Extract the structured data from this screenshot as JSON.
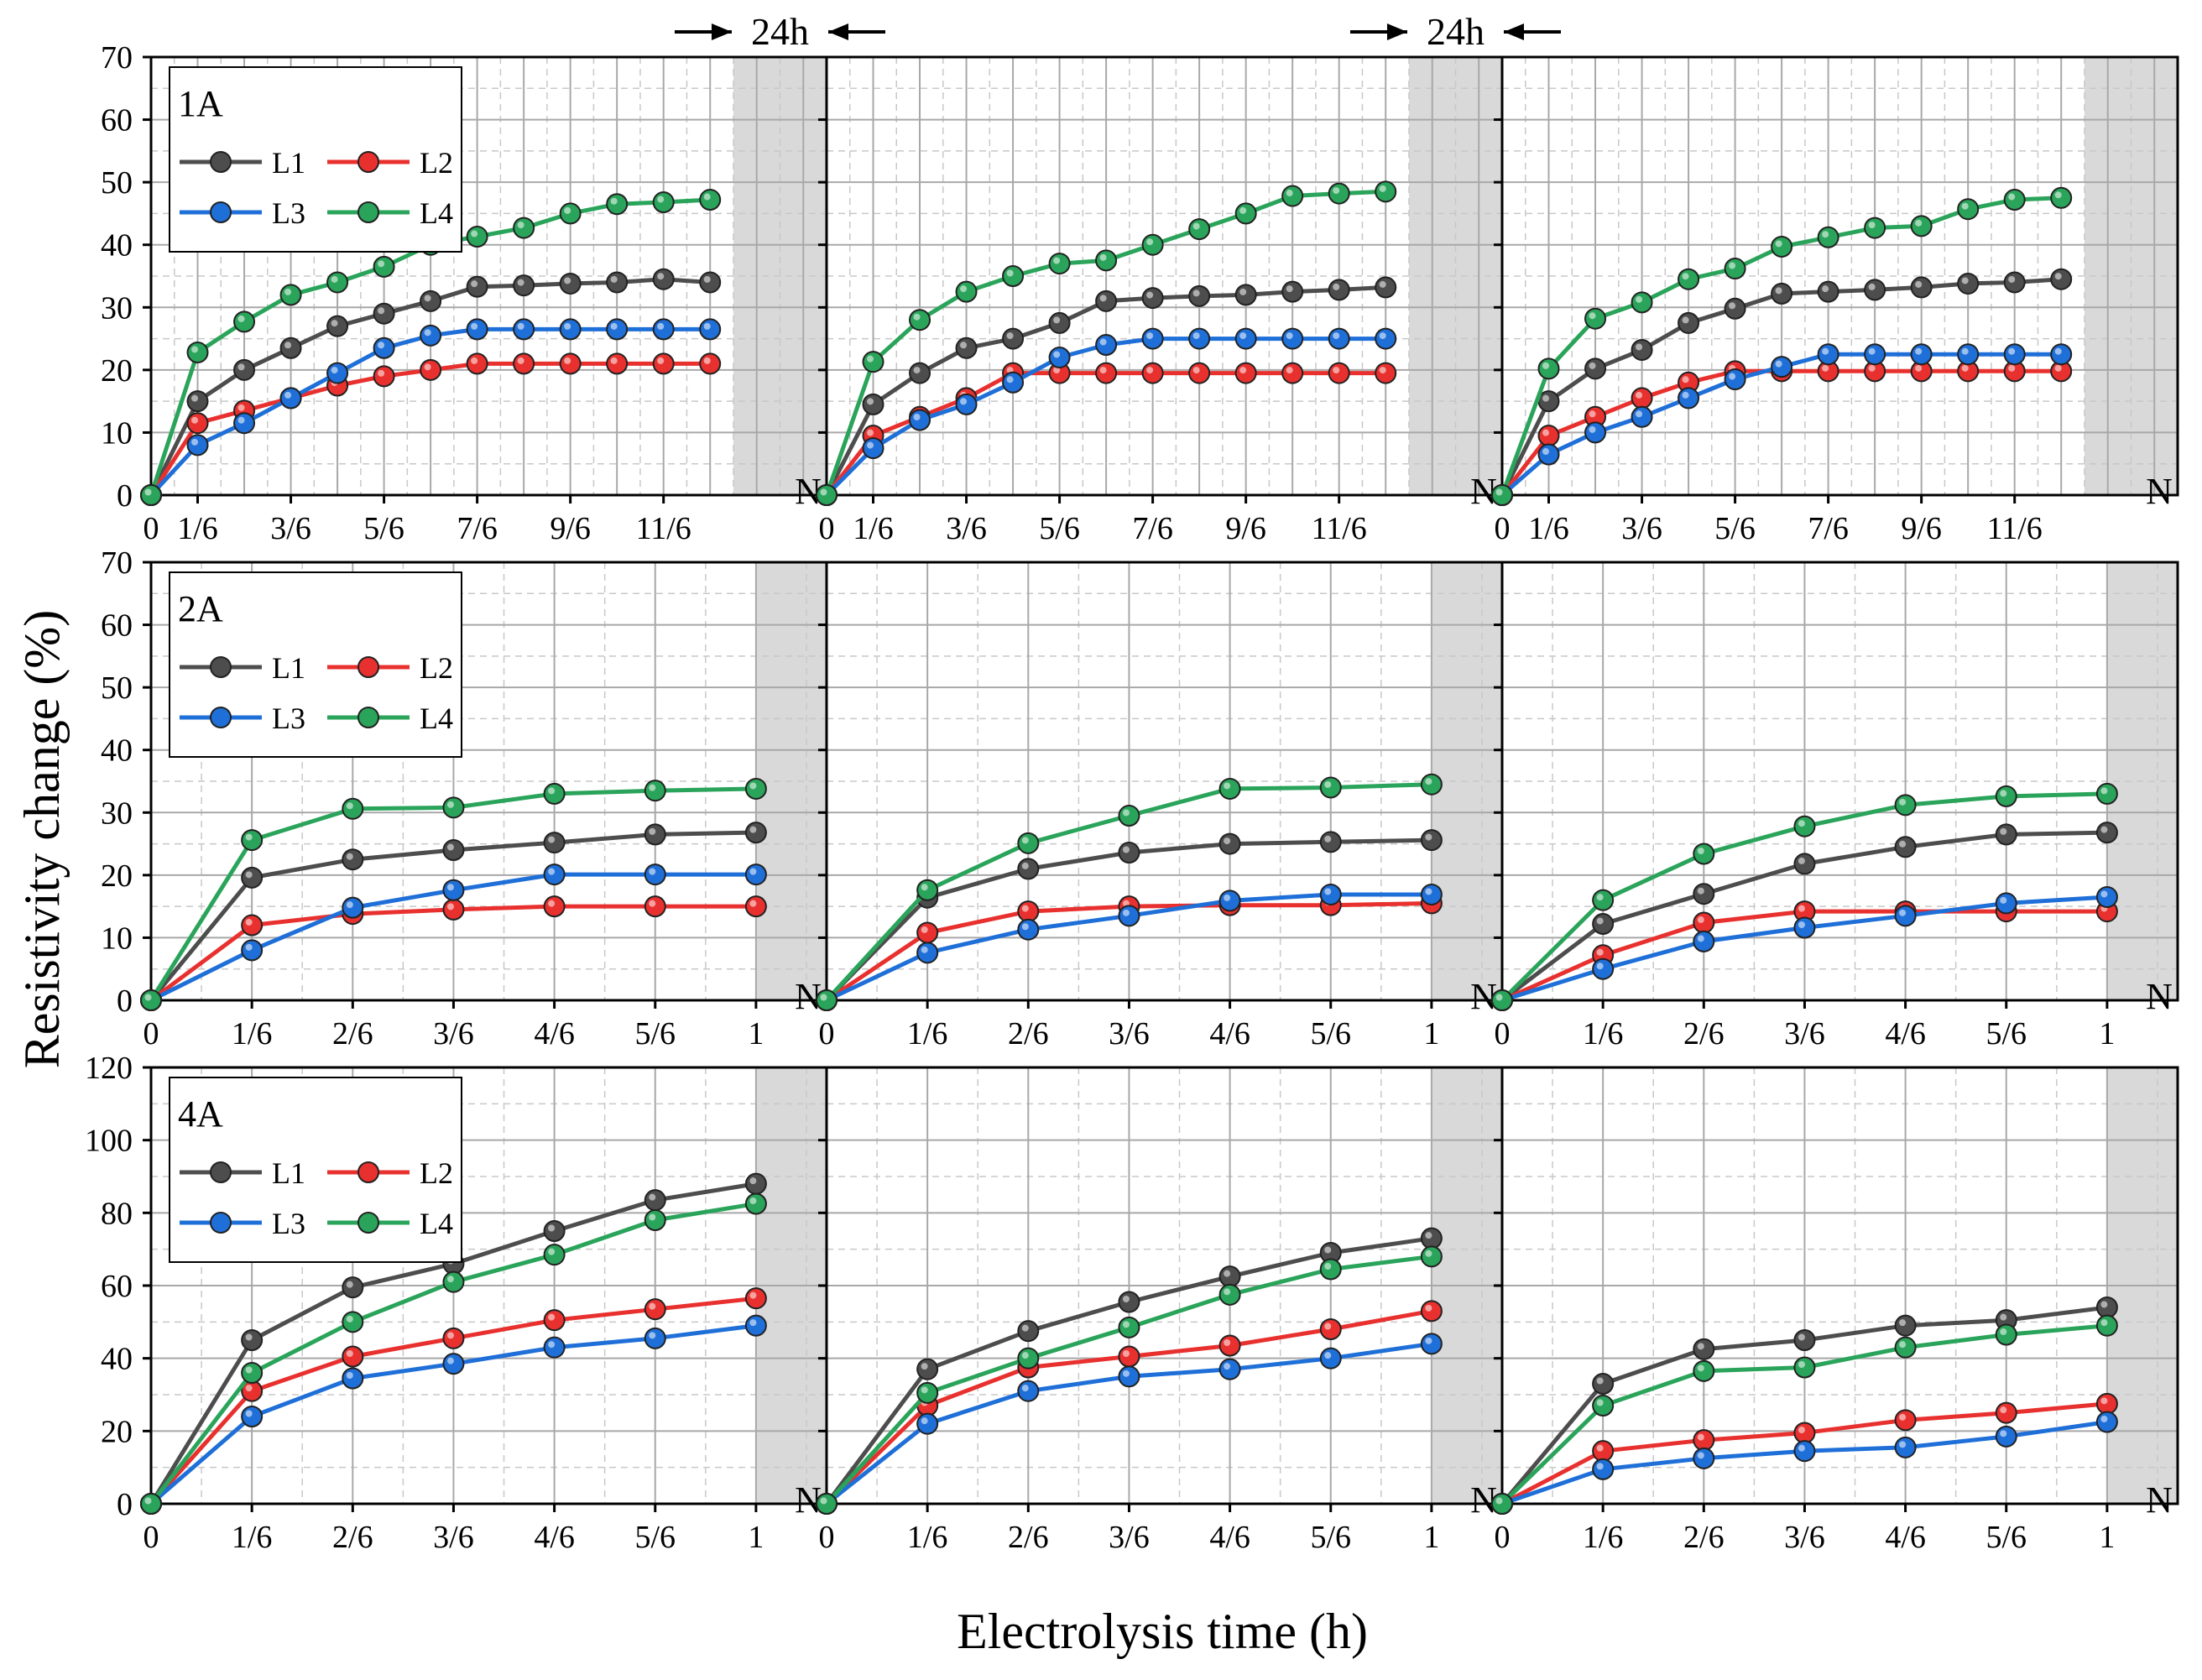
{
  "chart_data": {
    "type": "line",
    "xlabel": "Electrolysis time (h)",
    "ylabel": "Resistivity change (%)",
    "break_marker": "N",
    "annotation": "24h",
    "legend_entries": [
      "L1",
      "L2",
      "L3",
      "L4"
    ],
    "series_colors": {
      "L1": "#4d4d4d",
      "L2": "#e8312f",
      "L3": "#1f6fd8",
      "L4": "#2aa45a"
    },
    "rows": [
      {
        "label": "1A",
        "ylim": [
          0,
          70
        ],
        "yticks": [
          "0",
          "10",
          "20",
          "30",
          "40",
          "50",
          "60",
          "70"
        ],
        "xlim": [
          0,
          14.5
        ],
        "shade_from": 12.5,
        "xtick_values": [
          0,
          1,
          3,
          5,
          7,
          9,
          11
        ],
        "xtick_labels": [
          "0",
          "1/6",
          "3/6",
          "5/6",
          "7/6",
          "9/6",
          "11/6"
        ],
        "x": [
          0,
          1,
          2,
          3,
          4,
          5,
          6,
          7,
          8,
          9,
          10,
          11,
          12
        ],
        "panels": [
          {
            "series": [
              {
                "name": "L1",
                "values": [
                  0,
                  15,
                  20,
                  23.5,
                  27,
                  29,
                  31,
                  33.3,
                  33.5,
                  33.8,
                  34,
                  34.5,
                  34
                ]
              },
              {
                "name": "L2",
                "values": [
                  0,
                  11.5,
                  13.5,
                  15.5,
                  17.5,
                  19,
                  20,
                  21,
                  21,
                  21,
                  21,
                  21,
                  21
                ]
              },
              {
                "name": "L3",
                "values": [
                  0,
                  8,
                  11.5,
                  15.5,
                  19.5,
                  23.5,
                  25.5,
                  26.5,
                  26.5,
                  26.5,
                  26.5,
                  26.5,
                  26.5
                ]
              },
              {
                "name": "L4",
                "values": [
                  0,
                  22.8,
                  27.7,
                  32,
                  34,
                  36.5,
                  40,
                  41.3,
                  42.7,
                  45,
                  46.5,
                  46.8,
                  47.2
                ]
              }
            ]
          },
          {
            "series": [
              {
                "name": "L1",
                "values": [
                  0,
                  14.5,
                  19.5,
                  23.5,
                  25,
                  27.5,
                  31,
                  31.5,
                  31.8,
                  32,
                  32.5,
                  32.8,
                  33.2
                ]
              },
              {
                "name": "L2",
                "values": [
                  0,
                  9.5,
                  12.5,
                  15.5,
                  19.5,
                  19.5,
                  19.5,
                  19.5,
                  19.5,
                  19.5,
                  19.5,
                  19.5,
                  19.5
                ]
              },
              {
                "name": "L3",
                "values": [
                  0,
                  7.5,
                  12,
                  14.5,
                  18,
                  22,
                  24,
                  25,
                  25,
                  25,
                  25,
                  25,
                  25
                ]
              },
              {
                "name": "L4",
                "values": [
                  0,
                  21.3,
                  28,
                  32.5,
                  35,
                  37,
                  37.5,
                  40,
                  42.5,
                  45,
                  47.8,
                  48.2,
                  48.5
                ]
              }
            ]
          },
          {
            "series": [
              {
                "name": "L1",
                "values": [
                  0,
                  15,
                  20.2,
                  23.2,
                  27.5,
                  29.8,
                  32.2,
                  32.5,
                  32.8,
                  33.2,
                  33.8,
                  34,
                  34.5
                ]
              },
              {
                "name": "L2",
                "values": [
                  0,
                  9.5,
                  12.5,
                  15.5,
                  18,
                  19.8,
                  19.8,
                  19.8,
                  19.8,
                  19.8,
                  19.8,
                  19.8,
                  19.8
                ]
              },
              {
                "name": "L3",
                "values": [
                  0,
                  6.5,
                  10,
                  12.5,
                  15.5,
                  18.5,
                  20.5,
                  22.5,
                  22.5,
                  22.5,
                  22.5,
                  22.5,
                  22.5
                ]
              },
              {
                "name": "L4",
                "values": [
                  0,
                  20.2,
                  28.2,
                  30.8,
                  34.5,
                  36.2,
                  39.7,
                  41.2,
                  42.7,
                  43,
                  45.7,
                  47.2,
                  47.5
                ]
              }
            ]
          }
        ]
      },
      {
        "label": "2A",
        "ylim": [
          0,
          70
        ],
        "yticks": [
          "0",
          "10",
          "20",
          "30",
          "40",
          "50",
          "60",
          "70"
        ],
        "xlim": [
          0,
          6.7
        ],
        "shade_from": 6,
        "xtick_values": [
          0,
          1,
          2,
          3,
          4,
          5,
          6
        ],
        "xtick_labels": [
          "0",
          "1/6",
          "2/6",
          "3/6",
          "4/6",
          "5/6",
          "1"
        ],
        "x": [
          0,
          1,
          2,
          3,
          4,
          5,
          6
        ],
        "panels": [
          {
            "series": [
              {
                "name": "L1",
                "values": [
                  0,
                  19.6,
                  22.5,
                  24,
                  25.2,
                  26.5,
                  26.8
                ]
              },
              {
                "name": "L2",
                "values": [
                  0,
                  12,
                  13.8,
                  14.5,
                  15,
                  15,
                  15
                ]
              },
              {
                "name": "L3",
                "values": [
                  0,
                  8,
                  14.8,
                  17.6,
                  20.1,
                  20.1,
                  20.1
                ]
              },
              {
                "name": "L4",
                "values": [
                  0,
                  25.6,
                  30.6,
                  30.8,
                  33,
                  33.5,
                  33.8
                ]
              }
            ]
          },
          {
            "series": [
              {
                "name": "L1",
                "values": [
                  0,
                  16.4,
                  21,
                  23.6,
                  25,
                  25.3,
                  25.6
                ]
              },
              {
                "name": "L2",
                "values": [
                  0,
                  10.8,
                  14.2,
                  15,
                  15.2,
                  15.2,
                  15.5
                ]
              },
              {
                "name": "L3",
                "values": [
                  0,
                  7.6,
                  11.3,
                  13.5,
                  15.9,
                  16.9,
                  16.9
                ]
              },
              {
                "name": "L4",
                "values": [
                  0,
                  17.6,
                  25.1,
                  29.5,
                  33.8,
                  34,
                  34.5
                ]
              }
            ]
          },
          {
            "series": [
              {
                "name": "L1",
                "values": [
                  0,
                  12.2,
                  17,
                  21.8,
                  24.5,
                  26.5,
                  26.8
                ]
              },
              {
                "name": "L2",
                "values": [
                  0,
                  7.2,
                  12.4,
                  14.2,
                  14.2,
                  14.2,
                  14.2
                ]
              },
              {
                "name": "L3",
                "values": [
                  0,
                  5,
                  9.4,
                  11.6,
                  13.5,
                  15.5,
                  16.5
                ]
              },
              {
                "name": "L4",
                "values": [
                  0,
                  16,
                  23.4,
                  27.8,
                  31.2,
                  32.6,
                  33
                ]
              }
            ]
          }
        ]
      },
      {
        "label": "4A",
        "ylim": [
          0,
          120
        ],
        "yticks": [
          "0",
          "20",
          "40",
          "60",
          "80",
          "100",
          "120"
        ],
        "xlim": [
          0,
          6.7
        ],
        "shade_from": 6,
        "xtick_values": [
          0,
          1,
          2,
          3,
          4,
          5,
          6
        ],
        "xtick_labels": [
          "0",
          "1/6",
          "2/6",
          "3/6",
          "4/6",
          "5/6",
          "1"
        ],
        "x": [
          0,
          1,
          2,
          3,
          4,
          5,
          6
        ],
        "panels": [
          {
            "series": [
              {
                "name": "L1",
                "values": [
                  0,
                  45,
                  59.5,
                  66,
                  75,
                  83.5,
                  88
                ]
              },
              {
                "name": "L2",
                "values": [
                  0,
                  31,
                  40.5,
                  45.5,
                  50.5,
                  53.5,
                  56.5
                ]
              },
              {
                "name": "L3",
                "values": [
                  0,
                  24,
                  34.5,
                  38.5,
                  43,
                  45.5,
                  49
                ]
              },
              {
                "name": "L4",
                "values": [
                  0,
                  36,
                  50,
                  61,
                  68.5,
                  78,
                  82.5
                ]
              }
            ]
          },
          {
            "series": [
              {
                "name": "L1",
                "values": [
                  0,
                  37,
                  47.5,
                  55.5,
                  62.5,
                  69,
                  73
                ]
              },
              {
                "name": "L2",
                "values": [
                  0,
                  27,
                  37.5,
                  40.5,
                  43.5,
                  48,
                  53
                ]
              },
              {
                "name": "L3",
                "values": [
                  0,
                  22,
                  31,
                  35,
                  37,
                  40,
                  44
                ]
              },
              {
                "name": "L4",
                "values": [
                  0,
                  30.5,
                  40,
                  48.5,
                  57.5,
                  64.5,
                  68
                ]
              }
            ]
          },
          {
            "series": [
              {
                "name": "L1",
                "values": [
                  0,
                  33,
                  42.5,
                  45,
                  49,
                  50.5,
                  54
                ]
              },
              {
                "name": "L2",
                "values": [
                  0,
                  14.5,
                  17.5,
                  19.5,
                  23,
                  25,
                  27.5
                ]
              },
              {
                "name": "L3",
                "values": [
                  0,
                  9.5,
                  12.5,
                  14.5,
                  15.5,
                  18.5,
                  22.5
                ]
              },
              {
                "name": "L4",
                "values": [
                  0,
                  27,
                  36.5,
                  37.5,
                  43,
                  46.5,
                  49
                ]
              }
            ]
          }
        ]
      }
    ]
  }
}
